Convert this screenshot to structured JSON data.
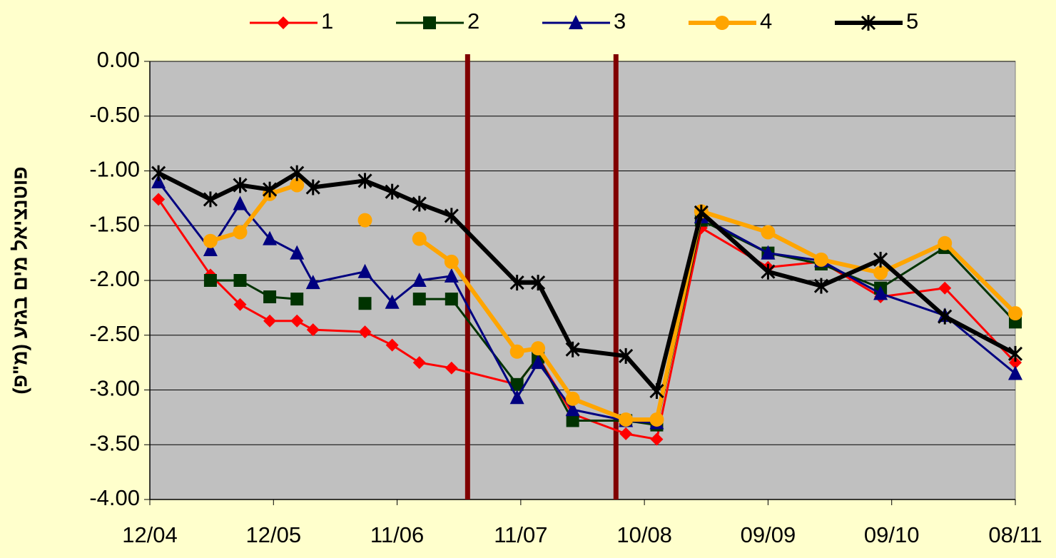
{
  "chart_data": {
    "type": "line",
    "y_label": "פוטנציאל מים בגזע (מ\"פ)",
    "x": [
      0.07,
      0.49,
      0.73,
      0.97,
      1.19,
      1.32,
      1.74,
      1.96,
      2.18,
      2.44,
      2.97,
      3.14,
      3.42,
      3.85,
      4.1,
      4.46,
      5.0,
      5.43,
      5.91,
      6.43,
      7.0
    ],
    "xlim": [
      0,
      7
    ],
    "xticks": [
      {
        "value": 0,
        "label": "12/04"
      },
      {
        "value": 1,
        "label": "12/05"
      },
      {
        "value": 2,
        "label": "11/06"
      },
      {
        "value": 3,
        "label": "11/07"
      },
      {
        "value": 4,
        "label": "10/08"
      },
      {
        "value": 5,
        "label": "09/09"
      },
      {
        "value": 6,
        "label": "09/10"
      },
      {
        "value": 7,
        "label": "08/11"
      }
    ],
    "ylim": [
      -4,
      0
    ],
    "yticks": [
      {
        "value": 0,
        "label": "0.00"
      },
      {
        "value": -0.5,
        "label": "-0.50"
      },
      {
        "value": -1,
        "label": "-1.00"
      },
      {
        "value": -1.5,
        "label": "-1.50"
      },
      {
        "value": -2,
        "label": "-2.00"
      },
      {
        "value": -2.5,
        "label": "-2.50"
      },
      {
        "value": -3,
        "label": "-3.00"
      },
      {
        "value": -3.5,
        "label": "-3.50"
      },
      {
        "value": -4,
        "label": "-4.00"
      }
    ],
    "grid": true,
    "vlines": [
      2.57,
      3.77
    ],
    "vline_color": "#800000",
    "series": [
      {
        "name": "1",
        "color": "#ff0000",
        "marker": "diamond",
        "width": 3,
        "values": [
          -1.26,
          -1.95,
          -2.22,
          -2.37,
          -2.37,
          -2.45,
          -2.47,
          -2.59,
          -2.75,
          -2.8,
          -2.95,
          -2.7,
          -3.22,
          -3.4,
          -3.45,
          -1.52,
          -1.88,
          -1.83,
          -2.15,
          -2.07,
          -2.75
        ]
      },
      {
        "name": "2",
        "color": "#003300",
        "marker": "square",
        "width": 3,
        "values": [
          null,
          -2.0,
          -2.0,
          -2.15,
          -2.17,
          null,
          -2.21,
          null,
          -2.17,
          -2.17,
          -2.95,
          -2.7,
          -3.28,
          -3.28,
          -3.32,
          -1.45,
          -1.75,
          -1.85,
          -2.07,
          -1.7,
          -2.38
        ]
      },
      {
        "name": "3",
        "color": "#000080",
        "marker": "triangle",
        "width": 3,
        "values": [
          -1.1,
          -1.72,
          -1.3,
          -1.62,
          -1.75,
          -2.02,
          -1.92,
          -2.2,
          -2.0,
          -1.96,
          -3.07,
          -2.75,
          -3.18,
          -3.28,
          -3.3,
          -1.42,
          -1.75,
          -1.82,
          -2.12,
          -2.32,
          -2.85
        ]
      },
      {
        "name": "4",
        "color": "#ffa500",
        "marker": "circle",
        "width": 6,
        "values": [
          null,
          -1.64,
          -1.56,
          -1.21,
          -1.13,
          null,
          -1.45,
          null,
          -1.62,
          -1.83,
          -2.65,
          -2.62,
          -3.08,
          -3.27,
          -3.27,
          -1.37,
          -1.56,
          -1.81,
          -1.93,
          -1.66,
          -2.3
        ]
      },
      {
        "name": "5",
        "color": "#000000",
        "marker": "star",
        "width": 6,
        "values": [
          -1.02,
          -1.26,
          -1.13,
          -1.17,
          -1.02,
          -1.15,
          -1.09,
          -1.19,
          -1.3,
          -1.41,
          -2.02,
          -2.02,
          -2.63,
          -2.69,
          -3.01,
          -1.38,
          -1.92,
          -2.05,
          -1.81,
          -2.33,
          -2.67
        ]
      }
    ]
  }
}
